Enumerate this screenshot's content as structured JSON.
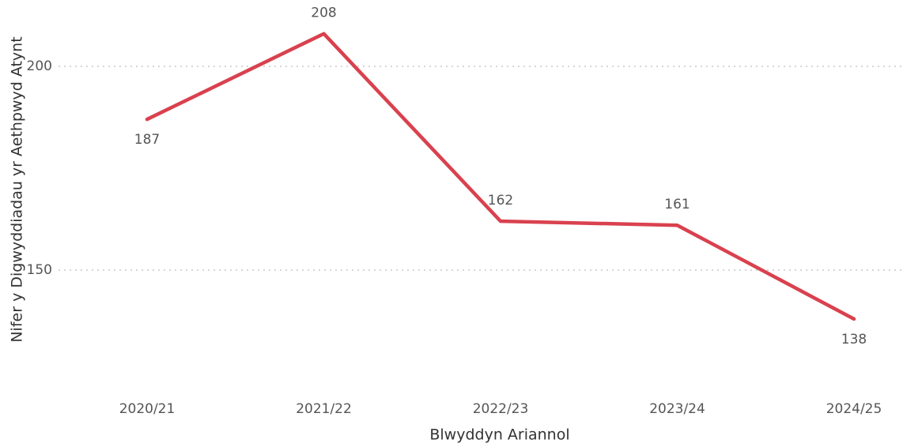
{
  "chart_data": {
    "type": "line",
    "x_label": "Blwyddyn Ariannol",
    "y_label": "Nifer y Digwyddiadau yr Aethpwyd Atynt",
    "categories": [
      "2020/21",
      "2021/22",
      "2022/23",
      "2023/24",
      "2024/25"
    ],
    "series": [
      {
        "name": "Nifer y Digwyddiadau yr Aethpwyd Atynt",
        "color": "#d9414e",
        "values": [
          187,
          208,
          162,
          161,
          138
        ]
      }
    ],
    "ylim": [
      120,
      210
    ],
    "yticks": [
      150,
      200
    ],
    "grid": true
  }
}
